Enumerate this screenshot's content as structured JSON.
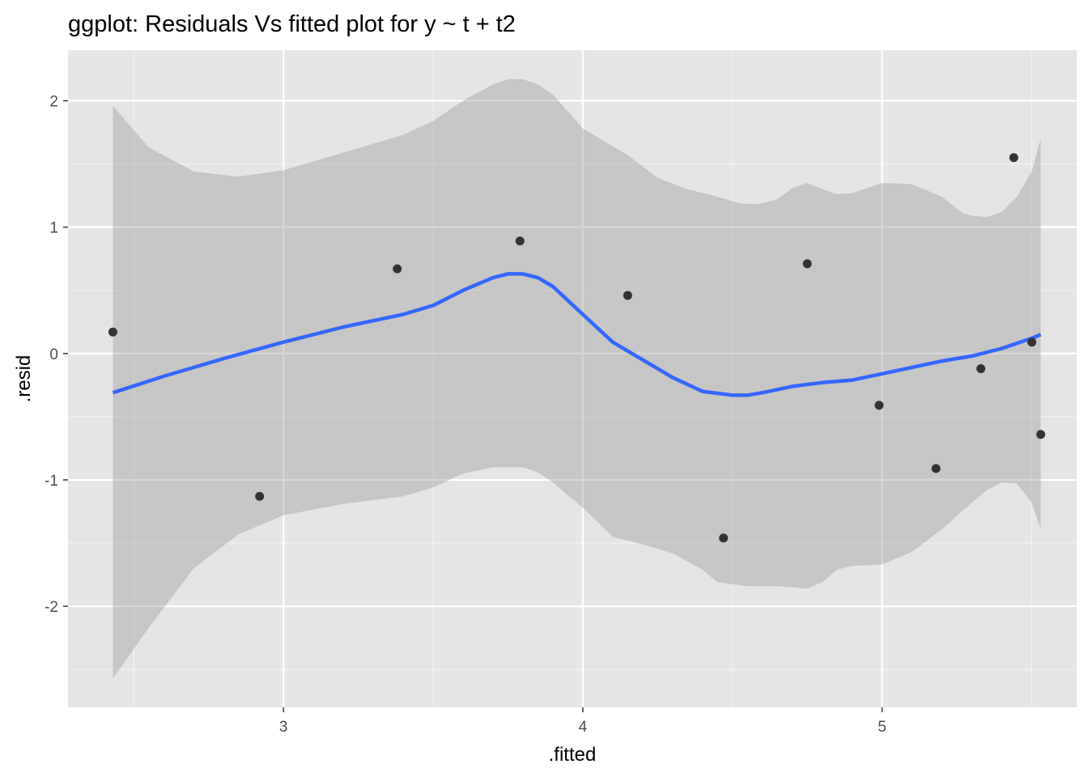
{
  "chart_data": {
    "type": "scatter",
    "title": "ggplot: Residuals Vs fitted plot for y ~ t + t2",
    "xlabel": ".fitted",
    "ylabel": ".resid",
    "xlim": [
      2.28,
      5.65
    ],
    "ylim": [
      -2.8,
      2.4
    ],
    "x_ticks": [
      3,
      4,
      5
    ],
    "x_tick_labels": [
      "3",
      "4",
      "5"
    ],
    "y_ticks": [
      -2,
      -1,
      0,
      1,
      2
    ],
    "y_tick_labels": [
      "-2",
      "-1",
      "0",
      "1",
      "2"
    ],
    "grid": true,
    "points": {
      "x": [
        2.43,
        2.92,
        3.38,
        3.79,
        4.15,
        4.47,
        4.75,
        4.99,
        5.18,
        5.33,
        5.44,
        5.5,
        5.53
      ],
      "y": [
        0.17,
        -1.13,
        0.67,
        0.89,
        0.46,
        -1.46,
        0.71,
        -0.41,
        -0.91,
        -0.12,
        1.55,
        0.09,
        -0.64
      ]
    },
    "smooth": {
      "x": [
        2.43,
        2.6,
        2.8,
        3.0,
        3.2,
        3.4,
        3.5,
        3.6,
        3.7,
        3.75,
        3.8,
        3.85,
        3.9,
        4.0,
        4.1,
        4.2,
        4.3,
        4.4,
        4.5,
        4.55,
        4.6,
        4.7,
        4.8,
        4.9,
        5.0,
        5.1,
        5.2,
        5.3,
        5.4,
        5.5,
        5.53
      ],
      "y": [
        -0.31,
        -0.18,
        -0.04,
        0.09,
        0.21,
        0.31,
        0.38,
        0.5,
        0.6,
        0.63,
        0.63,
        0.6,
        0.53,
        0.31,
        0.09,
        -0.05,
        -0.19,
        -0.3,
        -0.33,
        -0.33,
        -0.31,
        -0.26,
        -0.23,
        -0.21,
        -0.16,
        -0.11,
        -0.06,
        -0.02,
        0.04,
        0.12,
        0.15
      ]
    },
    "ci_upper": {
      "x": [
        2.43,
        2.55,
        2.7,
        2.85,
        3.0,
        3.2,
        3.4,
        3.5,
        3.6,
        3.7,
        3.75,
        3.8,
        3.85,
        3.9,
        4.0,
        4.15,
        4.25,
        4.35,
        4.45,
        4.52,
        4.58,
        4.65,
        4.7,
        4.75,
        4.8,
        4.85,
        4.9,
        5.0,
        5.1,
        5.2,
        5.27,
        5.3,
        5.35,
        5.4,
        5.45,
        5.5,
        5.53
      ],
      "y": [
        1.96,
        1.63,
        1.44,
        1.4,
        1.45,
        1.59,
        1.73,
        1.84,
        2.0,
        2.13,
        2.17,
        2.17,
        2.13,
        2.05,
        1.78,
        1.57,
        1.39,
        1.3,
        1.24,
        1.19,
        1.18,
        1.22,
        1.31,
        1.35,
        1.3,
        1.26,
        1.27,
        1.35,
        1.34,
        1.24,
        1.11,
        1.09,
        1.08,
        1.12,
        1.24,
        1.44,
        1.7
      ]
    },
    "ci_lower": {
      "x": [
        2.43,
        2.55,
        2.7,
        2.85,
        3.0,
        3.2,
        3.4,
        3.5,
        3.6,
        3.7,
        3.75,
        3.8,
        3.85,
        3.9,
        4.0,
        4.1,
        4.2,
        4.3,
        4.4,
        4.45,
        4.55,
        4.65,
        4.7,
        4.75,
        4.8,
        4.85,
        4.9,
        5.0,
        5.1,
        5.2,
        5.3,
        5.35,
        5.4,
        5.45,
        5.5,
        5.53
      ],
      "y": [
        -2.57,
        -2.17,
        -1.7,
        -1.43,
        -1.28,
        -1.19,
        -1.13,
        -1.06,
        -0.95,
        -0.9,
        -0.9,
        -0.9,
        -0.94,
        -1.02,
        -1.22,
        -1.45,
        -1.51,
        -1.58,
        -1.71,
        -1.81,
        -1.84,
        -1.84,
        -1.85,
        -1.86,
        -1.81,
        -1.71,
        -1.68,
        -1.67,
        -1.57,
        -1.39,
        -1.18,
        -1.08,
        -1.02,
        -1.03,
        -1.18,
        -1.39
      ]
    },
    "colors": {
      "panel": "#e5e5e5",
      "grid_major": "#ffffff",
      "grid_minor": "#f2f2f2",
      "point": "#333333",
      "smooth_line": "#3366ff",
      "ribbon": "#999999",
      "tick_label": "#4d4d4d",
      "tick_mark": "#333333"
    }
  }
}
